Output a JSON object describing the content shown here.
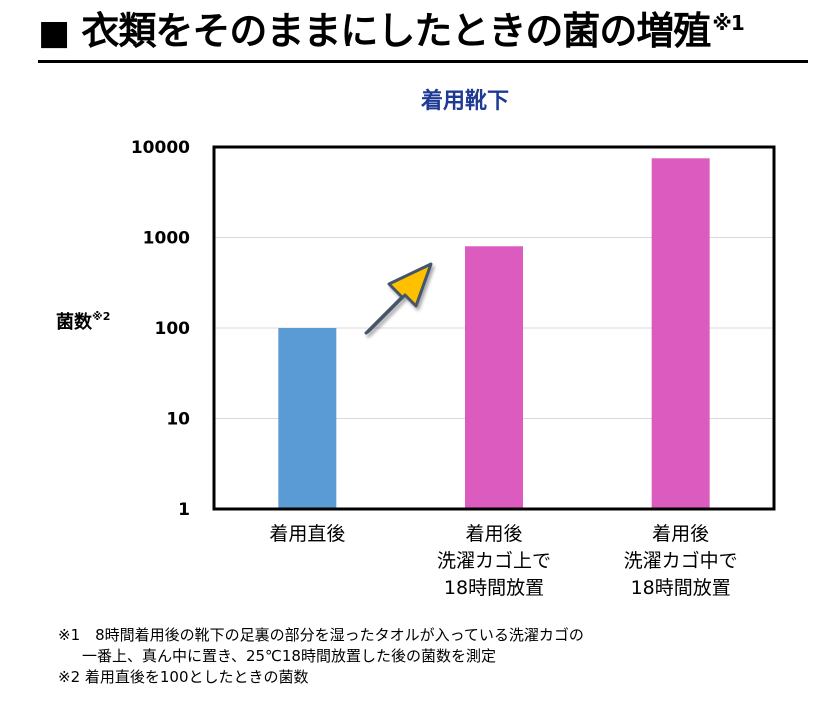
{
  "title": {
    "marker": "■",
    "text": "衣類をそのままにしたときの菌の増殖",
    "sup": "※1"
  },
  "chart_data": {
    "type": "bar",
    "title": "着用靴下",
    "ylabel": "菌数",
    "ylabel_sup": "※2",
    "yscale": "log",
    "ylim": [
      1,
      10000
    ],
    "yticks": [
      1,
      10,
      100,
      1000,
      10000
    ],
    "ytick_labels": [
      "1",
      "10",
      "100",
      "1000",
      "10000"
    ],
    "grid": true,
    "categories": [
      [
        "着用直後"
      ],
      [
        "着用後",
        "洗濯カゴ上で",
        "18時間放置"
      ],
      [
        "着用後",
        "洗濯カゴ中で",
        "18時間放置"
      ]
    ],
    "values": [
      100,
      800,
      7500
    ],
    "colors": [
      "#5b9bd5",
      "#db5bbf",
      "#db5bbf"
    ],
    "annotation": {
      "type": "arrow",
      "color": "#ffc000",
      "edge": "#44546a"
    }
  },
  "notes": [
    "※1　8時間着用後の靴下の足裏の部分を湿ったタオルが入っている洗濯カゴの",
    "一番上、真ん中に置き、25℃18時間放置した後の菌数を測定",
    "※2 着用直後を100としたときの菌数"
  ]
}
